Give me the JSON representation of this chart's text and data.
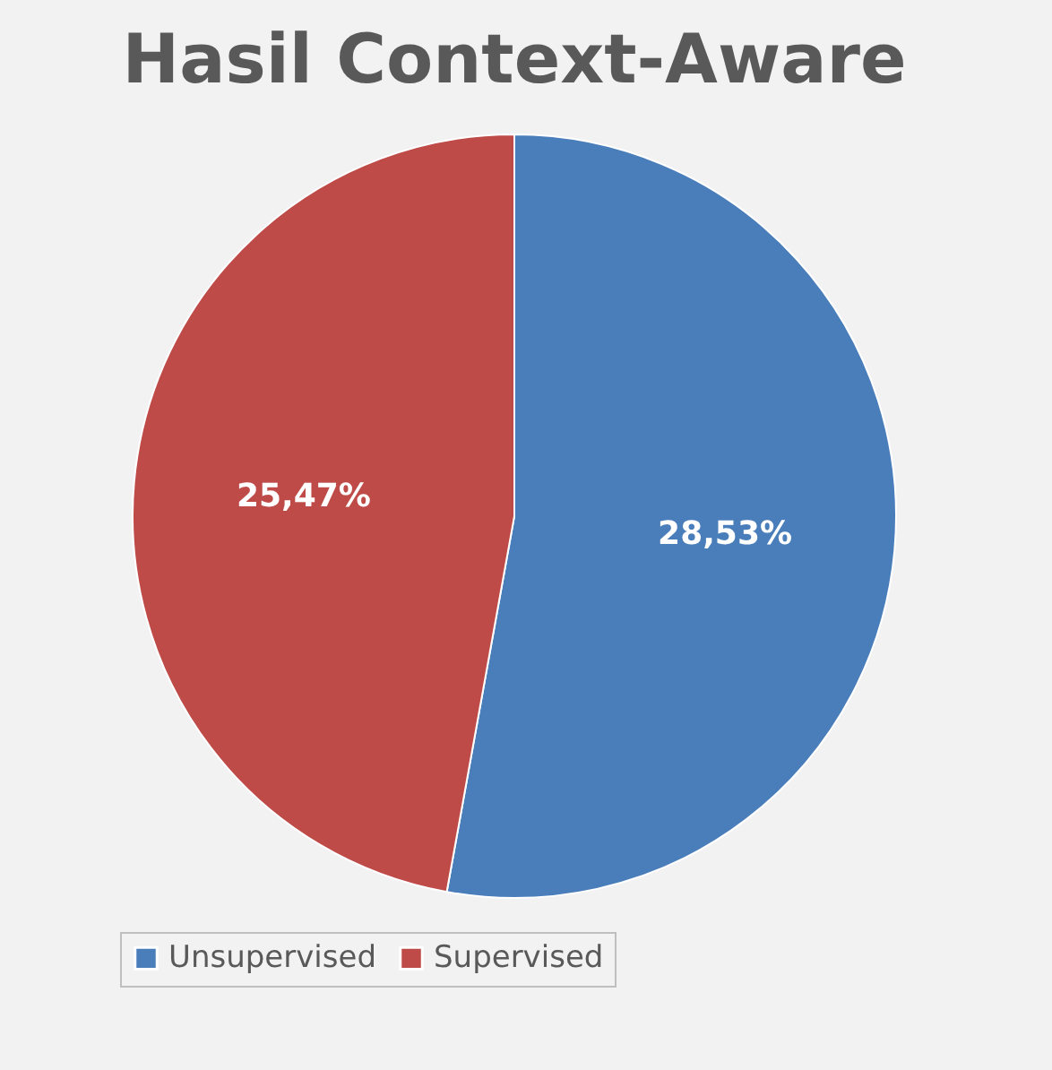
{
  "chart_data": {
    "type": "pie",
    "title": "Hasil Context-Aware",
    "categories": [
      "Unsupervised",
      "Supervised"
    ],
    "values": [
      28.53,
      25.47
    ],
    "colors": [
      "#4a7ebb",
      "#be4b48"
    ],
    "value_labels": [
      "28,53%",
      "25,47%"
    ],
    "legend": "bottom"
  }
}
